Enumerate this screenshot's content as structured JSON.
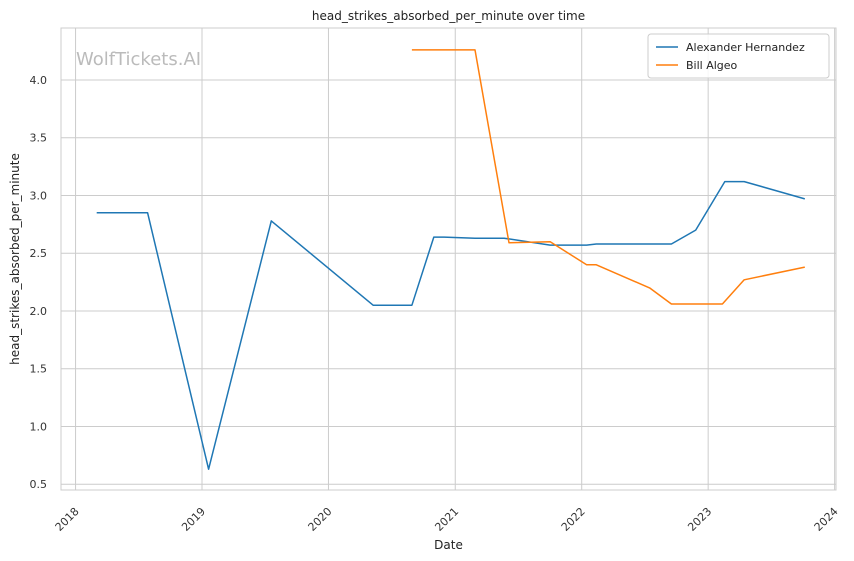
{
  "watermark": "WolfTickets.AI",
  "chart_data": {
    "type": "line",
    "title": "head_strikes_absorbed_per_minute over time",
    "xlabel": "Date",
    "ylabel": "head_strikes_absorbed_per_minute",
    "xlim": [
      "2017-11-20",
      "2024-01-05"
    ],
    "ylim": [
      0.45,
      4.45
    ],
    "x_ticks": [
      "2018-01-01",
      "2019-01-01",
      "2020-01-01",
      "2021-01-01",
      "2022-01-01",
      "2023-01-01",
      "2024-01-01"
    ],
    "x_tick_labels": [
      "2018",
      "2019",
      "2020",
      "2021",
      "2022",
      "2023",
      "2024"
    ],
    "y_ticks": [
      0.5,
      1.0,
      1.5,
      2.0,
      2.5,
      3.0,
      3.5,
      4.0
    ],
    "y_tick_labels": [
      "0.5",
      "1.0",
      "1.5",
      "2.0",
      "2.5",
      "3.0",
      "3.5",
      "4.0"
    ],
    "grid": true,
    "legend_position": "top-right",
    "series": [
      {
        "name": "Alexander Hernandez",
        "color": "#1f77b4",
        "points": [
          {
            "x": "2018-03-03",
            "y": 2.85
          },
          {
            "x": "2018-07-28",
            "y": 2.85
          },
          {
            "x": "2019-01-20",
            "y": 0.63
          },
          {
            "x": "2019-07-20",
            "y": 2.78
          },
          {
            "x": "2020-05-09",
            "y": 2.05
          },
          {
            "x": "2020-08-29",
            "y": 2.05
          },
          {
            "x": "2020-10-31",
            "y": 2.64
          },
          {
            "x": "2020-11-30",
            "y": 2.64
          },
          {
            "x": "2021-02-27",
            "y": 2.63
          },
          {
            "x": "2021-05-22",
            "y": 2.63
          },
          {
            "x": "2021-10-02",
            "y": 2.57
          },
          {
            "x": "2022-01-15",
            "y": 2.57
          },
          {
            "x": "2022-02-12",
            "y": 2.58
          },
          {
            "x": "2022-09-17",
            "y": 2.58
          },
          {
            "x": "2022-11-26",
            "y": 2.7
          },
          {
            "x": "2023-02-18",
            "y": 3.12
          },
          {
            "x": "2023-04-15",
            "y": 3.12
          },
          {
            "x": "2023-10-07",
            "y": 2.97
          }
        ]
      },
      {
        "name": "Bill Algeo",
        "color": "#ff7f0e",
        "points": [
          {
            "x": "2020-08-29",
            "y": 4.26
          },
          {
            "x": "2021-02-27",
            "y": 4.26
          },
          {
            "x": "2021-06-05",
            "y": 2.59
          },
          {
            "x": "2021-10-02",
            "y": 2.6
          },
          {
            "x": "2022-01-15",
            "y": 2.4
          },
          {
            "x": "2022-02-12",
            "y": 2.4
          },
          {
            "x": "2022-07-16",
            "y": 2.2
          },
          {
            "x": "2022-09-17",
            "y": 2.06
          },
          {
            "x": "2023-02-11",
            "y": 2.06
          },
          {
            "x": "2023-04-15",
            "y": 2.27
          },
          {
            "x": "2023-10-07",
            "y": 2.38
          }
        ]
      }
    ]
  }
}
